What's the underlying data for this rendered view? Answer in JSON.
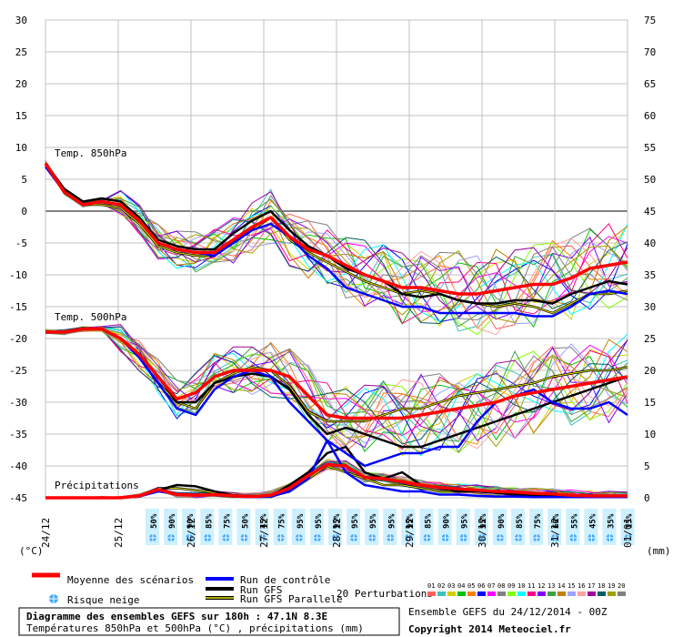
{
  "chart_data": {
    "type": "line",
    "title": "Diagramme des ensembles GEFS sur 180h : 47.1N 8.3E",
    "subtitle": "Températures 850hPa et 500hPa (°C) , précipitations (mm)",
    "source_text": "Ensemble GEFS du 24/12/2014 - 00Z",
    "copyright": "Copyright 2014 Meteociel.fr",
    "x_ticks": [
      "24/12",
      "25/12",
      "26/12",
      "27/12",
      "28/12",
      "29/12",
      "30/12",
      "31/12",
      "01/01"
    ],
    "x_unit_left": "(°C)",
    "x_unit_right": "(mm)",
    "y_left": {
      "ticks": [
        30,
        25,
        20,
        15,
        10,
        5,
        0,
        -5,
        -10,
        -15,
        -20,
        -25,
        -30,
        -35,
        -40,
        -45
      ],
      "range": [
        -45,
        30
      ]
    },
    "y_right": {
      "ticks": [
        75,
        70,
        65,
        60,
        55,
        50,
        45,
        40,
        35,
        30,
        25,
        20,
        15,
        10,
        5,
        0
      ],
      "range": [
        0,
        75
      ]
    },
    "group_labels": {
      "t850": "Temp. 850hPa",
      "t500": "Temp. 500hPa",
      "precip": "Précipitations"
    },
    "snow_risk": [
      "50%",
      "90%",
      "90%",
      "85%",
      "75%",
      "50%",
      "45%",
      "75%",
      "95%",
      "95%",
      "95%",
      "95%",
      "95%",
      "95%",
      "95%",
      "85%",
      "90%",
      "95%",
      "95%",
      "90%",
      "85%",
      "75%",
      "60%",
      "55%",
      "45%",
      "35%",
      "15%"
    ],
    "legend": {
      "mean": "Moyenne des scénarios",
      "snow": "Risque neige",
      "control": "Run de contrôle",
      "gfs": "Run GFS",
      "gfs_parallel": "Run GFS Parallele",
      "perturbations": "20 Perturbations",
      "perturbation_numbers": [
        "01",
        "02",
        "03",
        "04",
        "05",
        "06",
        "07",
        "08",
        "09",
        "10",
        "11",
        "12",
        "13",
        "14",
        "15",
        "16",
        "17",
        "18",
        "19",
        "20"
      ],
      "perturbation_colors": [
        "#ff6060",
        "#40c0c0",
        "#d0d000",
        "#00c000",
        "#ff8000",
        "#0000ff",
        "#ff00ff",
        "#808080",
        "#80ff00",
        "#00ffff",
        "#ff0080",
        "#8000ff",
        "#40a040",
        "#c08000",
        "#a0a0ff",
        "#ffa0a0",
        "#a000a0",
        "#006060",
        "#a0a000",
        "#808080"
      ]
    },
    "colors": {
      "mean": "#ff0000",
      "control": "#0000ff",
      "gfs": "#000000",
      "gfs_parallel_outer": "#000000",
      "gfs_parallel_inner": "#e8e800",
      "grid": "#c0c0c0",
      "zero_line": "#808080",
      "snow_bg": "#ccf0ff"
    },
    "series": [
      {
        "name": "Moyenne des scénarios",
        "group": "t850",
        "values": [
          7.5,
          3,
          1,
          1.5,
          1,
          -1.5,
          -5,
          -6,
          -6.5,
          -6.5,
          -4.5,
          -2.5,
          -1,
          -4,
          -6,
          -7,
          -8.5,
          -10,
          -11,
          -12,
          -12,
          -12.5,
          -13,
          -13,
          -12.5,
          -12,
          -11.5,
          -11.5,
          -10.5,
          -9,
          -8.5,
          -8
        ]
      },
      {
        "name": "Run de contrôle",
        "group": "t850",
        "values": [
          7,
          3,
          1,
          1.5,
          1,
          -1.5,
          -5,
          -6,
          -6.5,
          -7,
          -5,
          -3,
          -2,
          -4,
          -7,
          -9,
          -12,
          -13,
          -14,
          -15,
          -15,
          -16,
          -16,
          -16,
          -16,
          -16,
          -16.5,
          -16.5,
          -15,
          -13,
          -12.5,
          -13
        ]
      },
      {
        "name": "Run GFS",
        "group": "t850",
        "values": [
          7.5,
          3.5,
          1.5,
          2,
          1.5,
          -1,
          -4.5,
          -5.5,
          -6,
          -6,
          -3.5,
          -1.5,
          0,
          -3,
          -5.5,
          -7,
          -9,
          -10,
          -11,
          -13,
          -13.5,
          -13,
          -14,
          -14.5,
          -14.5,
          -14,
          -14,
          -14.5,
          -13,
          -12,
          -11,
          -11.5
        ]
      },
      {
        "name": "Run GFS Parallele",
        "group": "t850",
        "values": [
          7.5,
          3,
          1,
          1,
          0.5,
          -2,
          -5.5,
          -6.5,
          -7,
          -7,
          -5,
          -3,
          -1,
          -4.5,
          -6.5,
          -8,
          -9.5,
          -11,
          -12,
          -13,
          -12.5,
          -13,
          -14,
          -14.5,
          -15,
          -14.5,
          -15,
          -16,
          -14.5,
          -13,
          -13,
          -12.5
        ]
      },
      {
        "name": "Moyenne des scénarios",
        "group": "t500",
        "values": [
          -19,
          -19,
          -18.5,
          -18.5,
          -20,
          -22.5,
          -26,
          -29.5,
          -28.5,
          -26,
          -25,
          -25,
          -25,
          -26,
          -29,
          -32,
          -32.5,
          -32.5,
          -32.5,
          -32.5,
          -32,
          -31.5,
          -31,
          -30.5,
          -30,
          -29,
          -28.5,
          -28,
          -27.5,
          -27,
          -26.5,
          -26
        ]
      },
      {
        "name": "Run de contrôle",
        "group": "t500",
        "values": [
          -19,
          -19,
          -18.5,
          -18.5,
          -20,
          -23,
          -27,
          -31,
          -32,
          -28,
          -26,
          -25,
          -26,
          -30,
          -33,
          -36,
          -38,
          -40,
          -39,
          -38,
          -38,
          -37,
          -37,
          -33,
          -30,
          -29,
          -28,
          -30,
          -31,
          -31,
          -30,
          -32
        ]
      },
      {
        "name": "Run GFS",
        "group": "t500",
        "values": [
          -19,
          -19,
          -18.5,
          -18.5,
          -20,
          -22.5,
          -26,
          -30,
          -30,
          -27,
          -26,
          -25.5,
          -26,
          -28,
          -32,
          -35,
          -34,
          -35,
          -36,
          -37,
          -37,
          -36,
          -35,
          -34,
          -33,
          -32,
          -31,
          -30,
          -29,
          -28,
          -27,
          -26
        ]
      },
      {
        "name": "Run GFS Parallele",
        "group": "t500",
        "values": [
          -19,
          -19,
          -18.5,
          -18.5,
          -20,
          -23,
          -27,
          -30,
          -31,
          -27,
          -25.5,
          -24.5,
          -25,
          -27.5,
          -31.5,
          -33,
          -33,
          -33,
          -32,
          -31,
          -31,
          -30,
          -29,
          -28.5,
          -28,
          -27.5,
          -27,
          -26,
          -25.5,
          -25,
          -25,
          -24.5
        ]
      },
      {
        "name": "Moyenne des scénarios",
        "group": "precip",
        "values": [
          0,
          0,
          0,
          0,
          0,
          0.3,
          1.3,
          0.5,
          0.4,
          0.5,
          0.3,
          0.2,
          0.4,
          1.5,
          3.5,
          5.2,
          5.0,
          3.2,
          3.0,
          2.5,
          2.0,
          1.6,
          1.4,
          1.2,
          1.0,
          0.9,
          0.7,
          0.6,
          0.4,
          0.3,
          0.3,
          0.3
        ]
      },
      {
        "name": "Run de contrôle",
        "group": "precip",
        "values": [
          0,
          0,
          0,
          0,
          0,
          0.2,
          1,
          0.6,
          0.4,
          0.4,
          0.2,
          0.1,
          0.2,
          1,
          3,
          9,
          4,
          2,
          1.5,
          1,
          1,
          0.5,
          0.5,
          0.3,
          0.2,
          0.2,
          0.1,
          0.1,
          0.1,
          0.1,
          0.1,
          0.1
        ]
      },
      {
        "name": "Run GFS",
        "group": "precip",
        "values": [
          0,
          0,
          0,
          0,
          0,
          0.2,
          1.2,
          2,
          1.8,
          1,
          0.4,
          0.2,
          0.3,
          2,
          4,
          7,
          8,
          4,
          3,
          4,
          2,
          1.5,
          1,
          1,
          0.8,
          0.5,
          0.4,
          0.3,
          0.2,
          0.2,
          0.1,
          0.1
        ]
      },
      {
        "name": "Run GFS Parallele",
        "group": "precip",
        "values": [
          0,
          0,
          0,
          0,
          0,
          0.2,
          1.5,
          1.5,
          1.2,
          0.8,
          0.4,
          0.2,
          0.2,
          1,
          3,
          5,
          4,
          3,
          2,
          2,
          1.5,
          1,
          1,
          1,
          0.8,
          0.5,
          0.4,
          0.3,
          0.2,
          0.2,
          0.2,
          0.2
        ]
      }
    ]
  }
}
